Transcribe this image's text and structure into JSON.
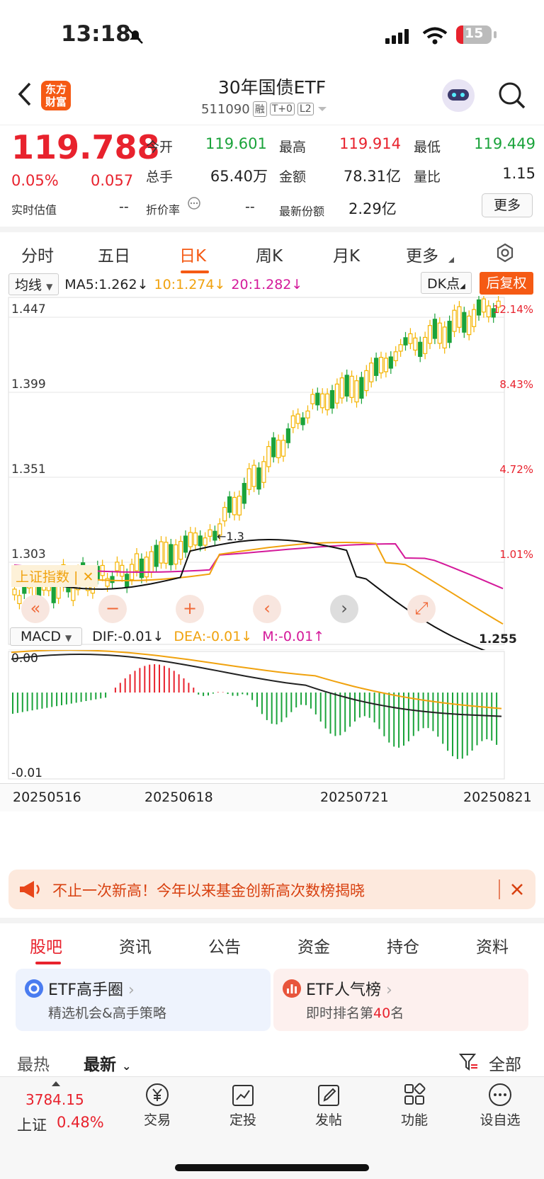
{
  "status_bar": {
    "time": "13:18",
    "battery": "15"
  },
  "header": {
    "title": "30年国债ETF",
    "code": "511090",
    "tags": [
      "融",
      "T+0",
      "L2"
    ],
    "logo_text_1": "东方",
    "logo_text_2": "财富"
  },
  "quote": {
    "price": "119.788",
    "change_pct": "0.05%",
    "change": "0.057",
    "open_label": "今开",
    "open": "119.601",
    "high_label": "最高",
    "high": "119.914",
    "low_label": "最低",
    "low": "119.449",
    "volume_label": "总手",
    "volume": "65.40万",
    "amount_label": "金额",
    "amount": "78.31亿",
    "ratio_label": "量比",
    "ratio": "1.15",
    "estimate_label": "实时估值",
    "estimate": "--",
    "premium_label": "折价率",
    "premium": "--",
    "shares_label": "最新份额",
    "shares": "2.29亿",
    "more_label": "更多"
  },
  "ktabs": [
    "分时",
    "五日",
    "日K",
    "周K",
    "月K",
    "更多"
  ],
  "ktab_active": 2,
  "chart": {
    "ma_selector": "均线",
    "ma5": "MA5:1.262",
    "ma10": "10:1.274",
    "ma20": "20:1.282",
    "dk_label": "DK点",
    "fq_label": "后复权",
    "index_overlay": "上证指数",
    "y_labels": [
      "1.447",
      "1.399",
      "1.351",
      "1.303",
      "1.255"
    ],
    "pct_labels": [
      "12.14%",
      "8.43%",
      "4.72%",
      "1.01%"
    ],
    "low_mark": "1.255",
    "high_mark": "1.3",
    "macd_selector": "MACD",
    "dif": "DIF:-0.01",
    "dea": "DEA:-0.01",
    "m": "M:-0.01",
    "macd_top": "0.00",
    "macd_bottom": "-0.01",
    "dates": [
      "20250516",
      "20250618",
      "20250721",
      "20250821"
    ],
    "colors": {
      "up": "#f5b400",
      "down": "#1aa33a",
      "ma5": "#111111",
      "ma10": "#f0a20e",
      "ma20": "#d4199a"
    }
  },
  "banner": {
    "text": "不止一次新高！今年以来基金创新高次数榜揭晓"
  },
  "subtabs": [
    "股吧",
    "资讯",
    "公告",
    "资金",
    "持仓",
    "资料"
  ],
  "cards": [
    {
      "title": "ETF高手圈",
      "sub": "精选机会&高手策略"
    },
    {
      "title": "ETF人气榜",
      "sub_prefix": "即时排名第",
      "rank": "40",
      "sub_suffix": "名"
    }
  ],
  "sort": {
    "hot": "最热",
    "new": "最新",
    "all": "全部"
  },
  "nav": {
    "index_value": "3784.15",
    "index_name": "上证",
    "index_change": "0.48%",
    "items": [
      "交易",
      "定投",
      "发帖",
      "功能",
      "设自选"
    ]
  }
}
